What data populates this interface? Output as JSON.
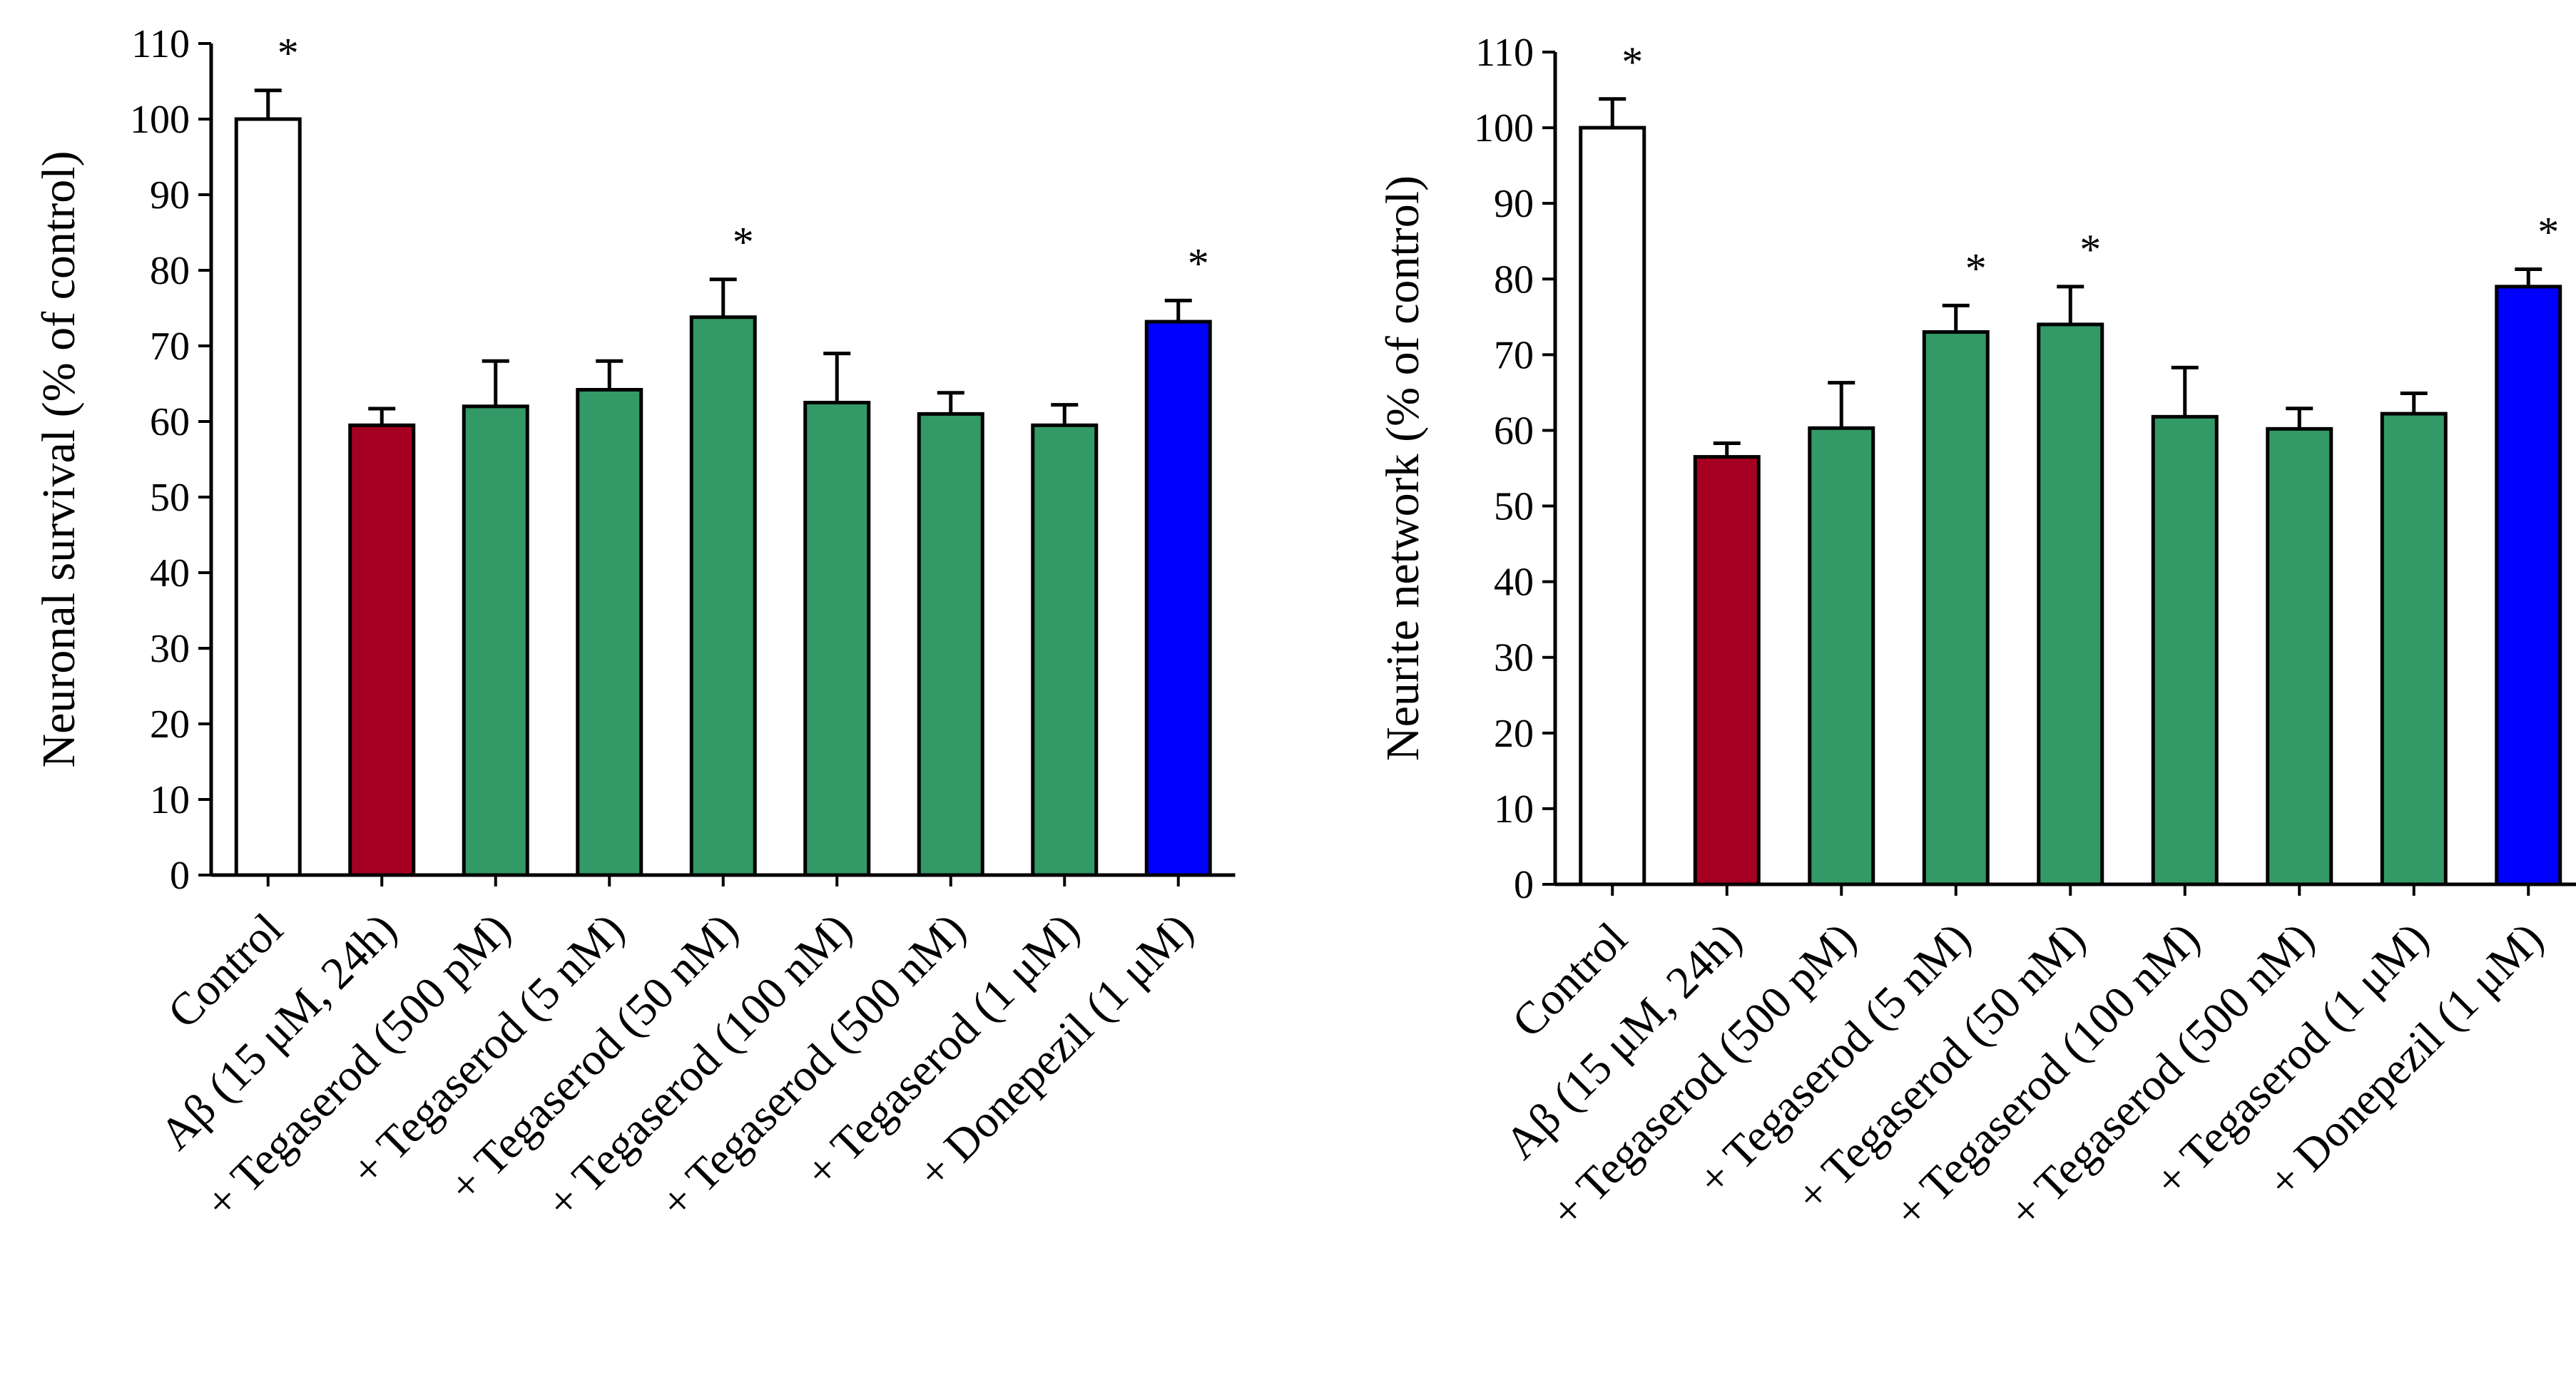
{
  "colors": {
    "control": "#ffffff",
    "abeta": "#a50021",
    "tegaserod": "#339966",
    "donepezil": "#0000ff",
    "outline": "#000000"
  },
  "categories": [
    "Control",
    "Aβ (15 μM, 24h)",
    "+ Tegaserod (500 pM)",
    "+ Tegaserod (5 nM)",
    "+ Tegaserod (50 nM)",
    "+ Tegaserod (100 nM)",
    "+ Tegaserod (500 nM)",
    "+ Tegaserod (1 μM)",
    "+ Donepezil (1 μM)"
  ],
  "bar_colors": [
    "control",
    "abeta",
    "tegaserod",
    "tegaserod",
    "tegaserod",
    "tegaserod",
    "tegaserod",
    "tegaserod",
    "donepezil"
  ],
  "significance_marker": "*",
  "chart_data": [
    {
      "type": "bar",
      "title": "",
      "xlabel": "",
      "ylabel": "Neuronal survival (% of control)",
      "ylim": [
        0,
        110
      ],
      "yticks": [
        0,
        10,
        20,
        30,
        40,
        50,
        60,
        70,
        80,
        90,
        100,
        110
      ],
      "values": [
        100,
        59.5,
        62,
        64.2,
        73.8,
        62.5,
        61,
        59.5,
        73.2
      ],
      "errors": [
        3.8,
        2.2,
        6,
        3.8,
        5,
        6.5,
        2.8,
        2.7,
        2.8
      ],
      "significant": [
        true,
        false,
        false,
        false,
        true,
        false,
        false,
        false,
        true
      ]
    },
    {
      "type": "bar",
      "title": "",
      "xlabel": "",
      "ylabel": "Neurite network (% of control)",
      "ylim": [
        0,
        110
      ],
      "yticks": [
        0,
        10,
        20,
        30,
        40,
        50,
        60,
        70,
        80,
        90,
        100,
        110
      ],
      "values": [
        100,
        56.5,
        60.3,
        73,
        74,
        61.8,
        60.2,
        62.2,
        79
      ],
      "errors": [
        3.8,
        1.8,
        6,
        3.5,
        5,
        6.5,
        2.7,
        2.7,
        2.3
      ],
      "significant": [
        true,
        false,
        false,
        true,
        true,
        false,
        false,
        false,
        true
      ]
    }
  ]
}
